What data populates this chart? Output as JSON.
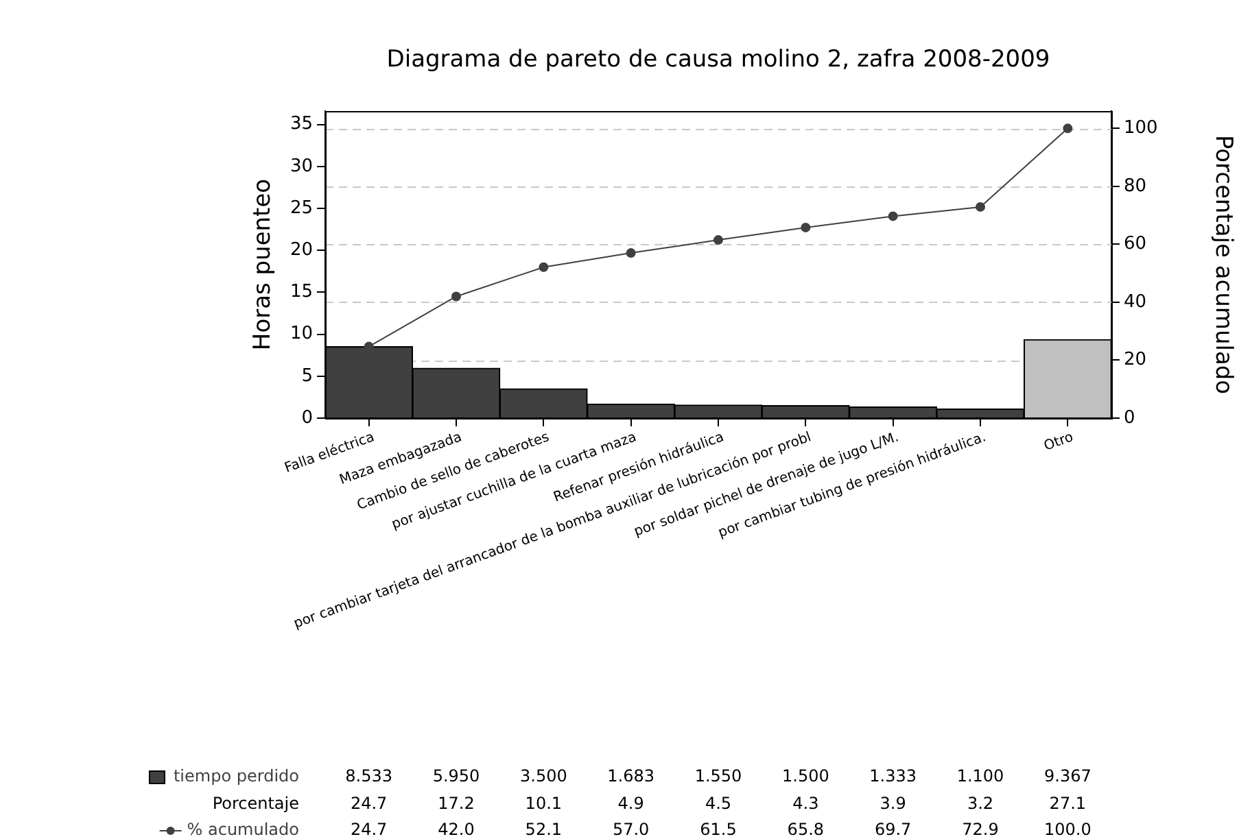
{
  "chart_data": {
    "type": "bar",
    "title": "Diagrama de pareto de causa molino 2, zafra 2008-2009",
    "ylabel": "Horas puenteo",
    "y2label": "Porcentaje acumulado",
    "categories": [
      "Falla eléctrica",
      "Maza embagazada",
      "Cambio de sello de caberotes",
      "por ajustar cuchilla de la cuarta maza",
      "Refenar presión hidráulica",
      "por cambiar tarjeta del arrancador de la bomba auxiliar de lubricación por probl",
      "por soldar pichel de drenaje de jugo L/M.",
      "por cambiar tubing de presión hidráulica.",
      "Otro"
    ],
    "series": [
      {
        "name": "tiempo perdido",
        "colors": [
          "#404040",
          "#404040",
          "#404040",
          "#404040",
          "#404040",
          "#404040",
          "#404040",
          "#404040",
          "#c0c0c0"
        ],
        "values": [
          8.533,
          5.95,
          3.5,
          1.683,
          1.55,
          1.5,
          1.333,
          1.1,
          9.367
        ],
        "value_labels": [
          "8.533",
          "5.950",
          "3.500",
          "1.683",
          "1.550",
          "1.500",
          "1.333",
          "1.100",
          "9.367"
        ]
      },
      {
        "name": "% acumulado",
        "type": "line",
        "axis": "y2",
        "color": "#404040",
        "values": [
          24.7,
          42.0,
          52.1,
          57.0,
          61.5,
          65.8,
          69.7,
          72.9,
          100.0
        ],
        "value_labels": [
          "24.7",
          "42.0",
          "52.1",
          "57.0",
          "61.5",
          "65.8",
          "69.7",
          "72.9",
          "100.0"
        ]
      }
    ],
    "annotations": [
      "Porcentaje",
      "24.7",
      "17.2",
      "10.1",
      "4.9",
      "4.5",
      "4.3",
      "3.9",
      "3.2",
      "27.1"
    ],
    "ylim": [
      0,
      36.6
    ],
    "yticks": [
      0,
      5,
      10,
      15,
      20,
      25,
      30,
      35
    ],
    "y2lim": [
      0,
      106
    ],
    "y2ticks": [
      0,
      20,
      40,
      60,
      80,
      100
    ],
    "grid": "y2",
    "legend": "bottom left",
    "marker": "circle",
    "line_style": "solid"
  }
}
